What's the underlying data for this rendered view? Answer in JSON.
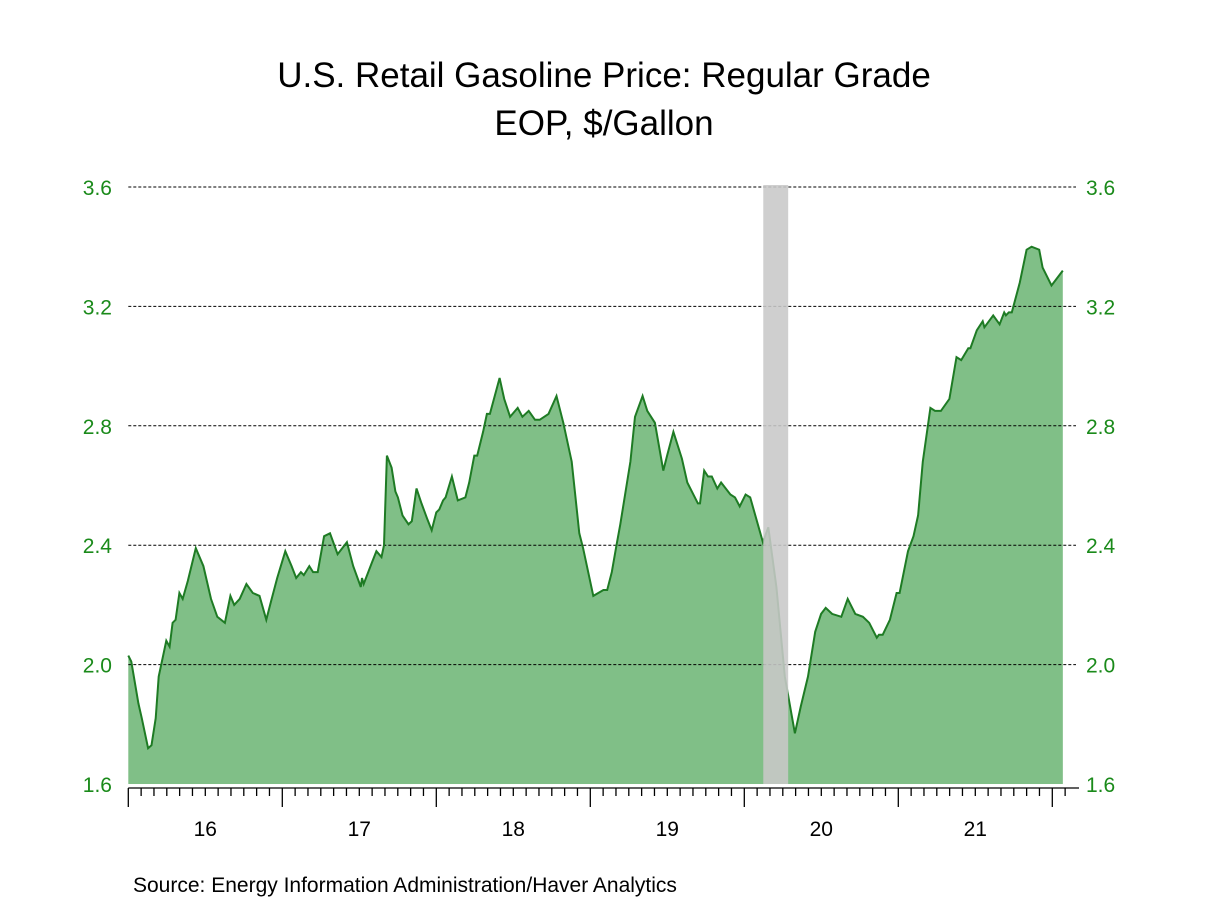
{
  "chart_data": {
    "type": "area",
    "title": "U.S. Retail Gasoline Price: Regular Grade",
    "subtitle": "EOP, $/Gallon",
    "source": "Source:  Energy Information Administration/Haver Analytics",
    "xlabel": "",
    "ylabel": "",
    "ylim": [
      1.6,
      3.6
    ],
    "yticks": [
      "1.6",
      "2.0",
      "2.4",
      "2.8",
      "3.2",
      "3.6"
    ],
    "xlim": [
      "2016-01-01",
      "2022-03-01"
    ],
    "xtick_labels": [
      {
        "label": "16",
        "year": 2016
      },
      {
        "label": "17",
        "year": 2017
      },
      {
        "label": "18",
        "year": 2018
      },
      {
        "label": "19",
        "year": 2019
      },
      {
        "label": "20",
        "year": 2020
      },
      {
        "label": "21",
        "year": 2021
      }
    ],
    "grid": "horizontal dashed",
    "y_axis_both_sides": true,
    "colors": {
      "line": "#1e7b24",
      "fill": "#80bf87",
      "tick_label": "#1a8a1a",
      "recession": "#c8c8c8"
    },
    "recession": {
      "start": "2020-02",
      "end": "2020-04"
    },
    "series": [
      {
        "points": [
          [
            "2016-01-01",
            2.03
          ],
          [
            "2016-01-08",
            2.01
          ],
          [
            "2016-01-25",
            1.87
          ],
          [
            "2016-02-02",
            1.82
          ],
          [
            "2016-02-17",
            1.72
          ],
          [
            "2016-02-25",
            1.73
          ],
          [
            "2016-03-07",
            1.82
          ],
          [
            "2016-03-14",
            1.96
          ],
          [
            "2016-04-01",
            2.08
          ],
          [
            "2016-04-09",
            2.06
          ],
          [
            "2016-04-16",
            2.14
          ],
          [
            "2016-04-23",
            2.15
          ],
          [
            "2016-05-02",
            2.24
          ],
          [
            "2016-05-10",
            2.22
          ],
          [
            "2016-05-22",
            2.28
          ],
          [
            "2016-06-10",
            2.39
          ],
          [
            "2016-06-28",
            2.33
          ],
          [
            "2016-07-16",
            2.22
          ],
          [
            "2016-07-31",
            2.16
          ],
          [
            "2016-08-18",
            2.14
          ],
          [
            "2016-08-31",
            2.23
          ],
          [
            "2016-09-09",
            2.2
          ],
          [
            "2016-09-22",
            2.22
          ],
          [
            "2016-10-08",
            2.27
          ],
          [
            "2016-10-23",
            2.24
          ],
          [
            "2016-11-08",
            2.23
          ],
          [
            "2016-11-24",
            2.15
          ],
          [
            "2016-12-05",
            2.21
          ],
          [
            "2016-12-20",
            2.29
          ],
          [
            "2017-01-08",
            2.38
          ],
          [
            "2017-01-23",
            2.33
          ],
          [
            "2017-02-03",
            2.29
          ],
          [
            "2017-02-14",
            2.31
          ],
          [
            "2017-02-21",
            2.3
          ],
          [
            "2017-03-06",
            2.33
          ],
          [
            "2017-03-15",
            2.31
          ],
          [
            "2017-03-26",
            2.31
          ],
          [
            "2017-04-10",
            2.43
          ],
          [
            "2017-04-24",
            2.44
          ],
          [
            "2017-05-12",
            2.37
          ],
          [
            "2017-06-03",
            2.41
          ],
          [
            "2017-06-18",
            2.33
          ],
          [
            "2017-07-06",
            2.26
          ],
          [
            "2017-07-09",
            2.29
          ],
          [
            "2017-07-13",
            2.27
          ],
          [
            "2017-08-01",
            2.34
          ],
          [
            "2017-08-12",
            2.38
          ],
          [
            "2017-08-24",
            2.36
          ],
          [
            "2017-08-30",
            2.4
          ],
          [
            "2017-09-06",
            2.7
          ],
          [
            "2017-09-17",
            2.66
          ],
          [
            "2017-09-26",
            2.58
          ],
          [
            "2017-10-02",
            2.56
          ],
          [
            "2017-10-13",
            2.5
          ],
          [
            "2017-10-27",
            2.47
          ],
          [
            "2017-11-04",
            2.48
          ],
          [
            "2017-11-15",
            2.59
          ],
          [
            "2017-11-27",
            2.54
          ],
          [
            "2017-12-10",
            2.49
          ],
          [
            "2017-12-21",
            2.45
          ],
          [
            "2018-01-01",
            2.51
          ],
          [
            "2018-01-08",
            2.52
          ],
          [
            "2018-01-17",
            2.55
          ],
          [
            "2018-01-23",
            2.56
          ],
          [
            "2018-02-07",
            2.63
          ],
          [
            "2018-02-21",
            2.55
          ],
          [
            "2018-03-11",
            2.56
          ],
          [
            "2018-03-20",
            2.61
          ],
          [
            "2018-04-01",
            2.7
          ],
          [
            "2018-04-08",
            2.7
          ],
          [
            "2018-04-22",
            2.78
          ],
          [
            "2018-05-01",
            2.84
          ],
          [
            "2018-05-08",
            2.84
          ],
          [
            "2018-05-31",
            2.96
          ],
          [
            "2018-06-11",
            2.89
          ],
          [
            "2018-06-25",
            2.83
          ],
          [
            "2018-07-13",
            2.86
          ],
          [
            "2018-07-24",
            2.83
          ],
          [
            "2018-08-08",
            2.85
          ],
          [
            "2018-08-23",
            2.82
          ],
          [
            "2018-09-03",
            2.82
          ],
          [
            "2018-09-24",
            2.84
          ],
          [
            "2018-10-13",
            2.9
          ],
          [
            "2018-10-29",
            2.81
          ],
          [
            "2018-11-18",
            2.68
          ],
          [
            "2018-12-06",
            2.44
          ],
          [
            "2018-12-15",
            2.39
          ],
          [
            "2019-01-08",
            2.23
          ],
          [
            "2019-02-01",
            2.25
          ],
          [
            "2019-02-10",
            2.25
          ],
          [
            "2019-02-21",
            2.31
          ],
          [
            "2019-03-04",
            2.4
          ],
          [
            "2019-03-13",
            2.47
          ],
          [
            "2019-04-06",
            2.68
          ],
          [
            "2019-04-17",
            2.83
          ],
          [
            "2019-05-05",
            2.9
          ],
          [
            "2019-05-16",
            2.85
          ],
          [
            "2019-06-03",
            2.81
          ],
          [
            "2019-06-23",
            2.65
          ],
          [
            "2019-07-02",
            2.7
          ],
          [
            "2019-07-17",
            2.78
          ],
          [
            "2019-08-06",
            2.69
          ],
          [
            "2019-08-19",
            2.61
          ],
          [
            "2019-09-13",
            2.54
          ],
          [
            "2019-09-18",
            2.54
          ],
          [
            "2019-09-28",
            2.65
          ],
          [
            "2019-10-07",
            2.63
          ],
          [
            "2019-10-16",
            2.63
          ],
          [
            "2019-10-29",
            2.59
          ],
          [
            "2019-11-07",
            2.61
          ],
          [
            "2019-11-29",
            2.57
          ],
          [
            "2019-12-10",
            2.56
          ],
          [
            "2019-12-21",
            2.53
          ],
          [
            "2020-01-04",
            2.57
          ],
          [
            "2020-01-15",
            2.56
          ],
          [
            "2020-02-14",
            2.41
          ],
          [
            "2020-02-27",
            2.46
          ],
          [
            "2020-03-18",
            2.26
          ],
          [
            "2020-04-07",
            1.96
          ],
          [
            "2020-05-01",
            1.77
          ],
          [
            "2020-05-15",
            1.86
          ],
          [
            "2020-06-01",
            1.96
          ],
          [
            "2020-06-18",
            2.11
          ],
          [
            "2020-07-02",
            2.17
          ],
          [
            "2020-07-13",
            2.19
          ],
          [
            "2020-07-28",
            2.17
          ],
          [
            "2020-08-19",
            2.16
          ],
          [
            "2020-09-03",
            2.22
          ],
          [
            "2020-09-21",
            2.17
          ],
          [
            "2020-10-09",
            2.16
          ],
          [
            "2020-10-24",
            2.14
          ],
          [
            "2020-11-11",
            2.09
          ],
          [
            "2020-11-16",
            2.1
          ],
          [
            "2020-11-25",
            2.1
          ],
          [
            "2020-12-12",
            2.15
          ],
          [
            "2020-12-28",
            2.24
          ],
          [
            "2021-01-04",
            2.24
          ],
          [
            "2021-01-24",
            2.38
          ],
          [
            "2021-02-06",
            2.43
          ],
          [
            "2021-02-17",
            2.5
          ],
          [
            "2021-02-28",
            2.68
          ],
          [
            "2021-03-18",
            2.86
          ],
          [
            "2021-03-29",
            2.85
          ],
          [
            "2021-04-12",
            2.85
          ],
          [
            "2021-05-02",
            2.89
          ],
          [
            "2021-05-19",
            3.03
          ],
          [
            "2021-05-30",
            3.02
          ],
          [
            "2021-06-16",
            3.06
          ],
          [
            "2021-06-21",
            3.06
          ],
          [
            "2021-07-06",
            3.12
          ],
          [
            "2021-07-20",
            3.15
          ],
          [
            "2021-07-24",
            3.13
          ],
          [
            "2021-08-14",
            3.17
          ],
          [
            "2021-08-29",
            3.14
          ],
          [
            "2021-09-09",
            3.18
          ],
          [
            "2021-09-13",
            3.17
          ],
          [
            "2021-09-20",
            3.18
          ],
          [
            "2021-09-27",
            3.18
          ],
          [
            "2021-10-16",
            3.28
          ],
          [
            "2021-11-01",
            3.39
          ],
          [
            "2021-11-13",
            3.4
          ],
          [
            "2021-12-01",
            3.39
          ],
          [
            "2021-12-09",
            3.33
          ],
          [
            "2021-12-30",
            3.27
          ],
          [
            "2022-01-26",
            3.32
          ]
        ]
      }
    ]
  }
}
